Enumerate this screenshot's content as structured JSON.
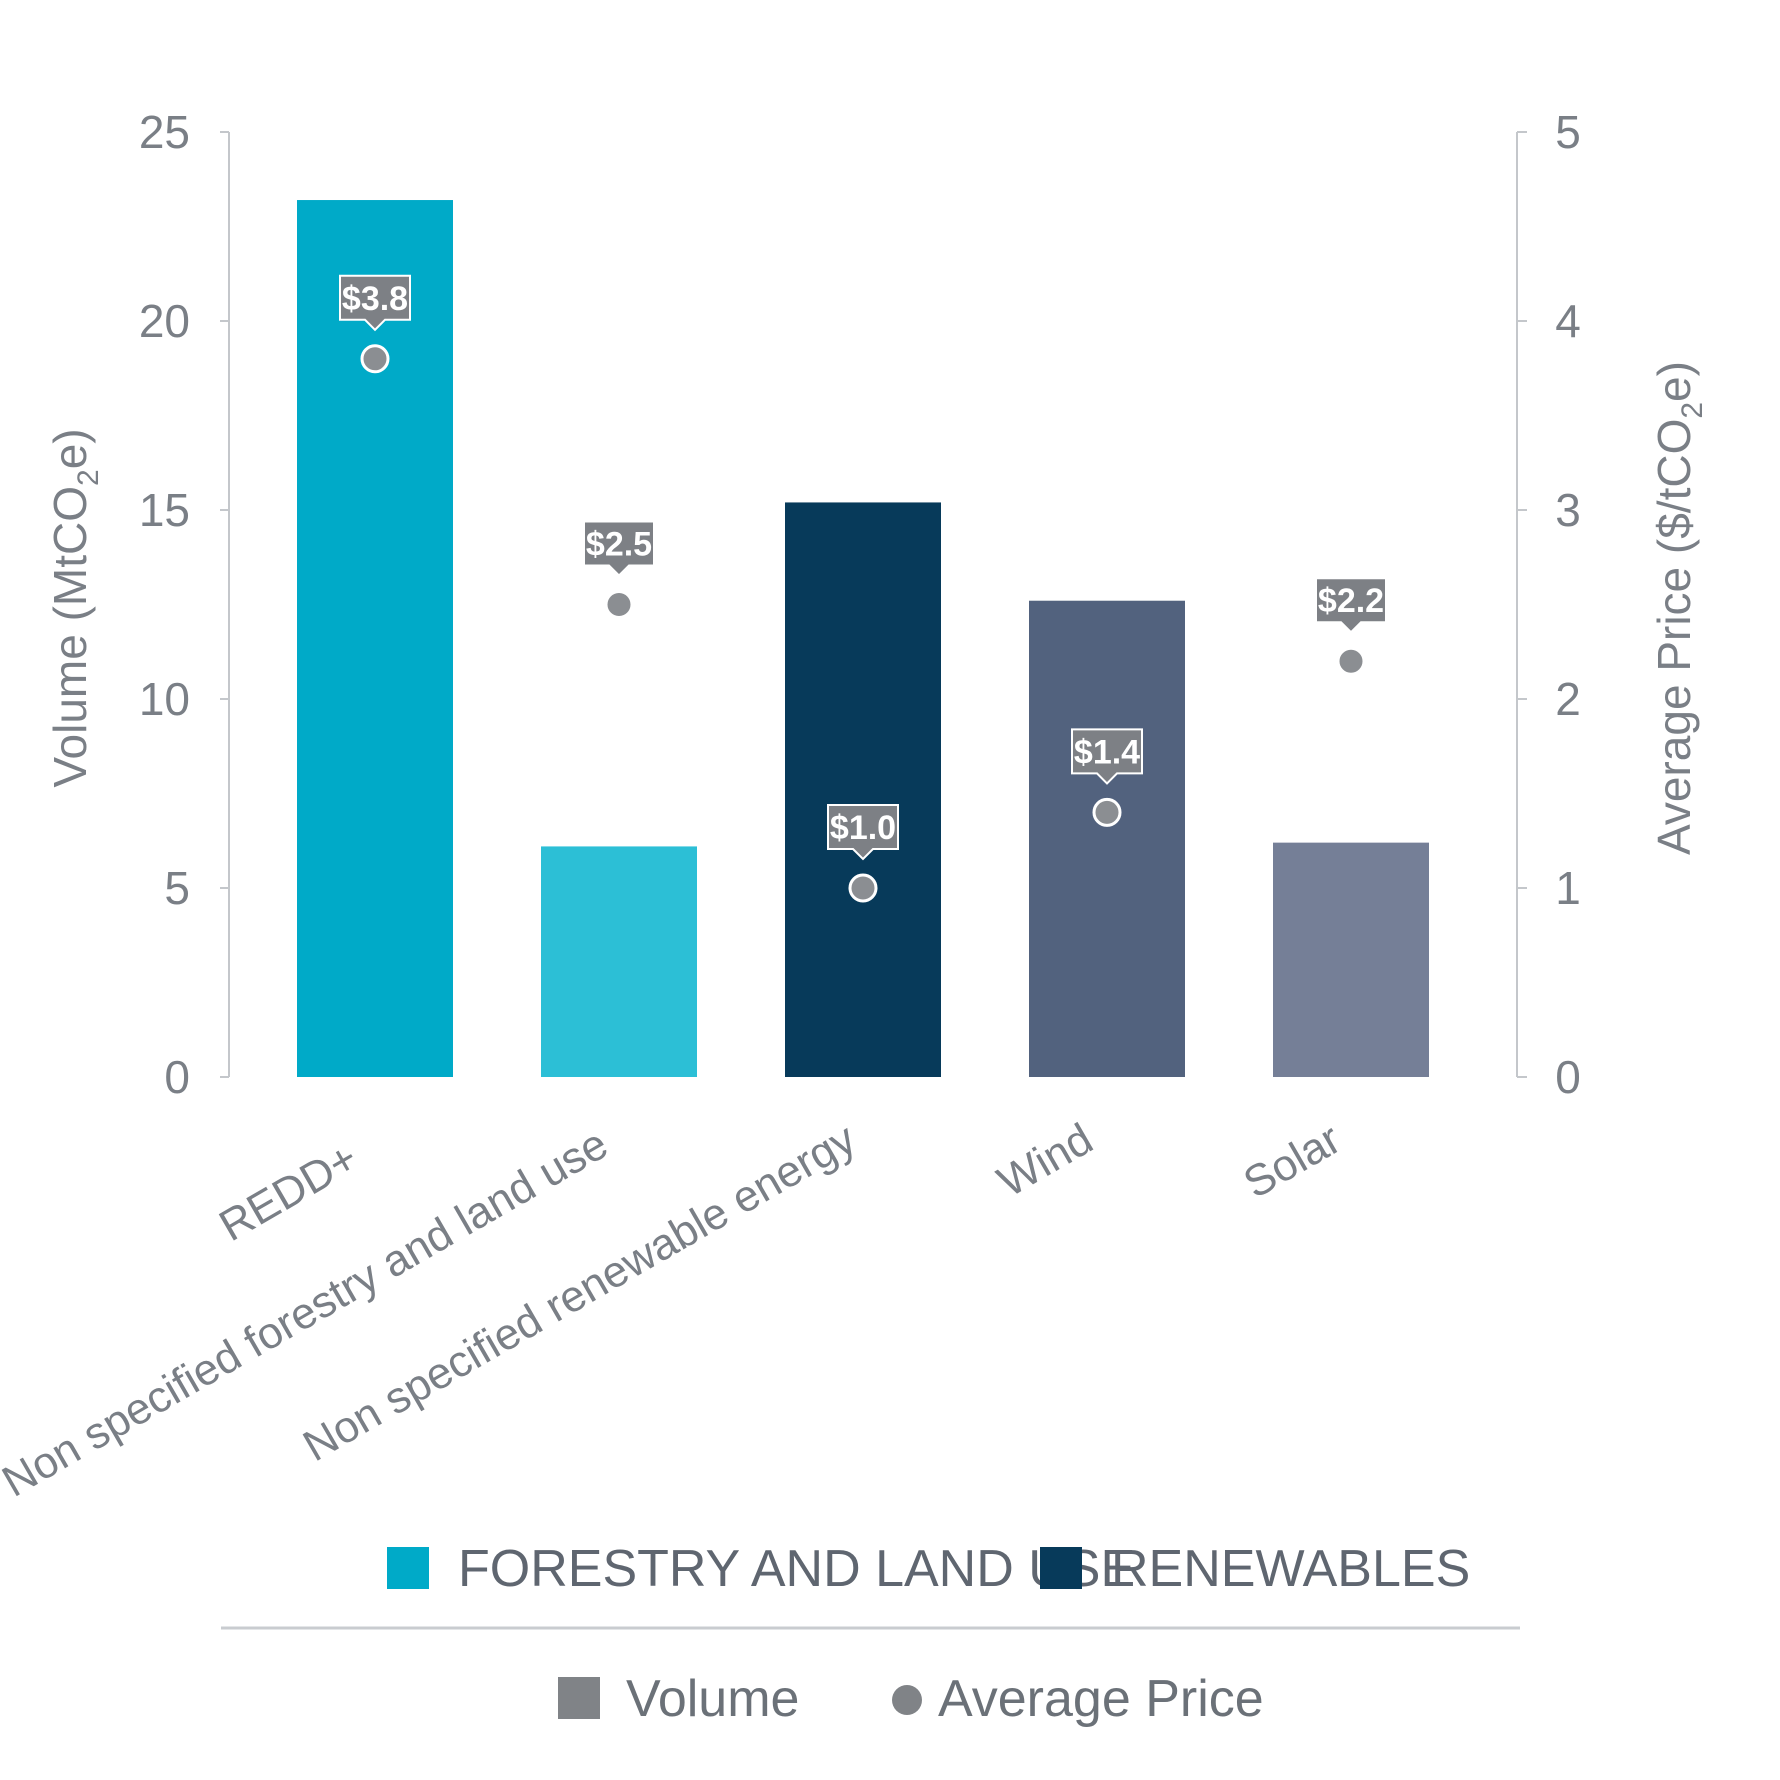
{
  "chart_data": {
    "type": "bar",
    "categories": [
      "REDD+",
      "Non specified forestry and land use",
      "Non specified renewable energy",
      "Wind",
      "Solar"
    ],
    "series": [
      {
        "name": "Volume",
        "axis": "left",
        "values": [
          23.2,
          6.1,
          15.2,
          12.6,
          6.2
        ]
      },
      {
        "name": "Average Price",
        "axis": "right",
        "values": [
          3.8,
          2.5,
          1.0,
          1.4,
          2.2
        ]
      }
    ],
    "price_labels": [
      "$3.8",
      "$2.5",
      "$1.0",
      "$1.4",
      "$2.2"
    ],
    "bar_groups": [
      "FORESTRY AND LAND USE",
      "FORESTRY AND LAND USE",
      "RENEWABLES",
      "RENEWABLES",
      "RENEWABLES"
    ],
    "bar_colors": [
      "#00aac8",
      "#2cbfd6",
      "#073a5a",
      "#52627e",
      "#757f97"
    ],
    "ylabel": "Volume (MtCO2e)",
    "ylabel_parts": {
      "pre": "Volume (MtCO",
      "sub": "2",
      "post": "e)"
    },
    "y2label": "Average Price ($/tCO2e)",
    "y2label_parts": {
      "pre": "Average Price ($/tCO",
      "sub": "2",
      "post": "e)"
    },
    "ylim": [
      0,
      25
    ],
    "y2lim": [
      0,
      5
    ],
    "yticks": [
      "0",
      "5",
      "10",
      "15",
      "20",
      "25"
    ],
    "y2ticks": [
      "0",
      "1",
      "2",
      "3",
      "4",
      "5"
    ],
    "grid": false,
    "legend_groups": [
      {
        "label": "FORESTRY AND LAND USE",
        "color": "#00aac8"
      },
      {
        "label": "RENEWABLES",
        "color": "#073a5a"
      }
    ],
    "legend_series": [
      {
        "label": "Volume",
        "shape": "square",
        "color": "#808387"
      },
      {
        "label": "Average Price",
        "shape": "circle",
        "color": "#808387"
      }
    ],
    "legend_placement": "bottom",
    "marker_color": "#8b8e92",
    "callout_color": "#7d8085",
    "axis_color": "#c4c7cb"
  }
}
